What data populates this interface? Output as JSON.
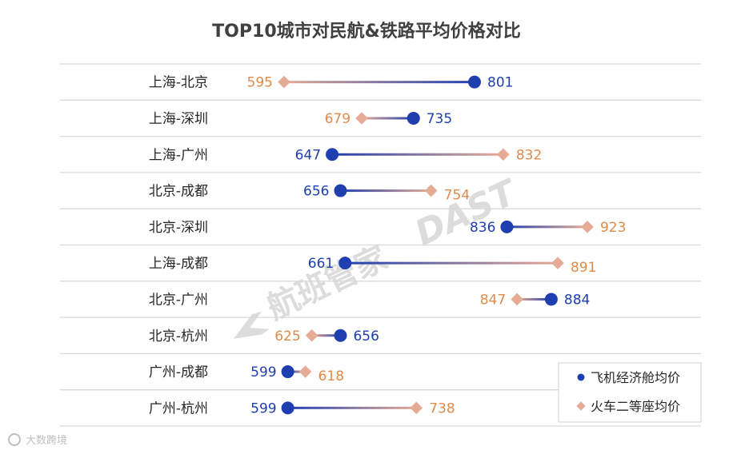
{
  "chart_data": {
    "type": "dumbbell",
    "title": "TOP10城市对民航&铁路平均价格对比",
    "categories": [
      "上海-北京",
      "上海-深圳",
      "上海-广州",
      "北京-成都",
      "北京-深圳",
      "上海-成都",
      "北京-广州",
      "北京-杭州",
      "广州-成都",
      "广州-杭州"
    ],
    "series": [
      {
        "name": "飞机经济舱均价",
        "color": "#1f3fb0",
        "marker": "circle",
        "values": [
          801,
          735,
          647,
          656,
          836,
          661,
          884,
          656,
          599,
          599
        ]
      },
      {
        "name": "火车二等座均价",
        "color": "#e6ab94",
        "marker": "diamond",
        "values": [
          595,
          679,
          832,
          754,
          923,
          891,
          847,
          625,
          618,
          738
        ]
      }
    ],
    "xlim": [
      450,
      1000
    ],
    "legend_position": "bottom-right",
    "grid": "horizontal"
  },
  "watermark": {
    "text": "航班管家",
    "suffix": "DAST"
  },
  "source": "大数跨境",
  "colors": {
    "flight_label": "#1f3fb0",
    "train_label": "#e08a4a",
    "grid": "#d9d9d9"
  }
}
